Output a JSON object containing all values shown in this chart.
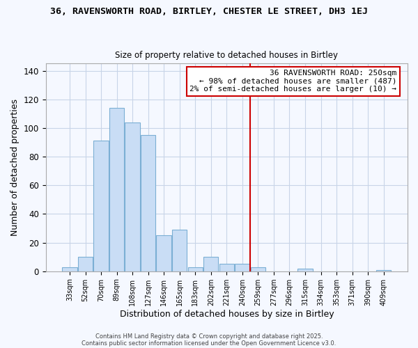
{
  "title": "36, RAVENSWORTH ROAD, BIRTLEY, CHESTER LE STREET, DH3 1EJ",
  "subtitle": "Size of property relative to detached houses in Birtley",
  "xlabel": "Distribution of detached houses by size in Birtley",
  "ylabel": "Number of detached properties",
  "bar_labels": [
    "33sqm",
    "52sqm",
    "70sqm",
    "89sqm",
    "108sqm",
    "127sqm",
    "146sqm",
    "165sqm",
    "183sqm",
    "202sqm",
    "221sqm",
    "240sqm",
    "259sqm",
    "277sqm",
    "296sqm",
    "315sqm",
    "334sqm",
    "353sqm",
    "371sqm",
    "390sqm",
    "409sqm"
  ],
  "bar_heights": [
    3,
    10,
    91,
    114,
    104,
    95,
    25,
    29,
    3,
    10,
    5,
    5,
    3,
    0,
    0,
    2,
    0,
    0,
    0,
    0,
    1
  ],
  "bar_color": "#c9ddf5",
  "bar_edge_color": "#7bafd4",
  "vline_color": "#cc0000",
  "ylim": [
    0,
    145
  ],
  "yticks": [
    0,
    20,
    40,
    60,
    80,
    100,
    120,
    140
  ],
  "annotation_title": "36 RAVENSWORTH ROAD: 250sqm",
  "annotation_line1": "← 98% of detached houses are smaller (487)",
  "annotation_line2": "2% of semi-detached houses are larger (10) →",
  "footer1": "Contains HM Land Registry data © Crown copyright and database right 2025.",
  "footer2": "Contains public sector information licensed under the Open Government Licence v3.0.",
  "background_color": "#f5f8ff",
  "grid_color": "#c8d4e8"
}
